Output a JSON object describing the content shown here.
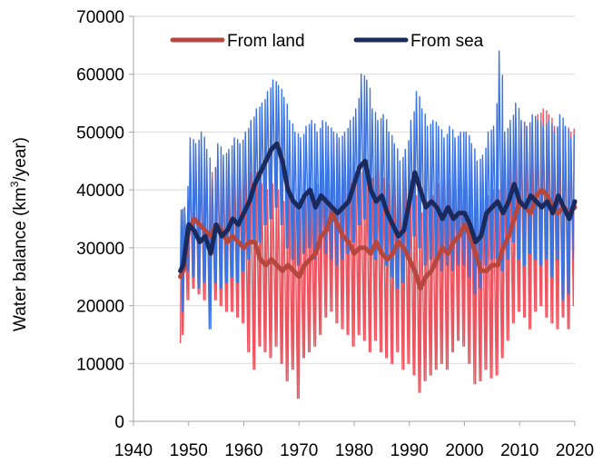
{
  "chart_data": {
    "type": "line",
    "title": "",
    "xlabel": "",
    "ylabel": "Water balance (km³/year)",
    "ylabel_parts": {
      "before": "Water balance (km",
      "sup": "3",
      "after": "/year)"
    },
    "xlim": [
      1940,
      2020
    ],
    "ylim": [
      0,
      70000
    ],
    "xticks": [
      "1940",
      "1950",
      "1960",
      "1970",
      "1980",
      "1990",
      "2000",
      "2010",
      "2020"
    ],
    "xtick_values": [
      1940,
      1950,
      1960,
      1970,
      1980,
      1990,
      2000,
      2010,
      2020
    ],
    "yticks": [
      "0",
      "10000",
      "20000",
      "30000",
      "40000",
      "50000",
      "60000",
      "70000"
    ],
    "ytick_values": [
      0,
      10000,
      20000,
      30000,
      40000,
      50000,
      60000,
      70000
    ],
    "grid": {
      "horizontal": true,
      "vertical": false
    },
    "legend": {
      "position": "top",
      "entries": [
        "From land",
        "From sea"
      ]
    },
    "series": [
      {
        "name": "From land",
        "role": "smoothed",
        "color": "#b5473f",
        "x": [
          1948.5,
          1949,
          1950,
          1951,
          1952,
          1953,
          1954,
          1955,
          1956,
          1957,
          1958,
          1959,
          1960,
          1961,
          1962,
          1963,
          1964,
          1965,
          1966,
          1967,
          1968,
          1969,
          1970,
          1971,
          1972,
          1973,
          1974,
          1975,
          1976,
          1977,
          1978,
          1979,
          1980,
          1981,
          1982,
          1983,
          1984,
          1985,
          1986,
          1987,
          1988,
          1989,
          1990,
          1991,
          1992,
          1993,
          1994,
          1995,
          1996,
          1997,
          1998,
          1999,
          2000,
          2001,
          2002,
          2003,
          2004,
          2005,
          2006,
          2007,
          2008,
          2009,
          2010,
          2011,
          2012,
          2013,
          2014,
          2015,
          2016,
          2017,
          2018,
          2019,
          2020
        ],
        "values": [
          25000,
          26000,
          33000,
          35000,
          34000,
          33000,
          32000,
          34000,
          33000,
          31000,
          32000,
          31000,
          30000,
          31000,
          31000,
          28000,
          27000,
          28000,
          27000,
          26000,
          27000,
          26000,
          25000,
          27000,
          28000,
          29000,
          32000,
          33000,
          36000,
          34000,
          32000,
          31000,
          29000,
          30000,
          30000,
          29000,
          31000,
          29000,
          28000,
          29000,
          31000,
          30000,
          28000,
          26000,
          23000,
          25000,
          26000,
          28000,
          30000,
          29000,
          31000,
          32000,
          34000,
          32000,
          29000,
          26000,
          26000,
          27000,
          27000,
          30000,
          32000,
          35000,
          38000,
          37000,
          36000,
          39000,
          40000,
          39000,
          37000,
          36000,
          37000,
          36000,
          37000
        ]
      },
      {
        "name": "From sea",
        "role": "smoothed",
        "color": "#1b2a5c",
        "x": [
          1948.5,
          1949,
          1950,
          1951,
          1952,
          1953,
          1954,
          1955,
          1956,
          1957,
          1958,
          1959,
          1960,
          1961,
          1962,
          1963,
          1964,
          1965,
          1966,
          1967,
          1968,
          1969,
          1970,
          1971,
          1972,
          1973,
          1974,
          1975,
          1976,
          1977,
          1978,
          1979,
          1980,
          1981,
          1982,
          1983,
          1984,
          1985,
          1986,
          1987,
          1988,
          1989,
          1990,
          1991,
          1992,
          1993,
          1994,
          1995,
          1996,
          1997,
          1998,
          1999,
          2000,
          2001,
          2002,
          2003,
          2004,
          2005,
          2006,
          2007,
          2008,
          2009,
          2010,
          2011,
          2012,
          2013,
          2014,
          2015,
          2016,
          2017,
          2018,
          2019,
          2020
        ],
        "values": [
          26000,
          27000,
          34000,
          33000,
          31000,
          32000,
          29000,
          34000,
          32000,
          33000,
          35000,
          34000,
          36000,
          38000,
          41000,
          43000,
          45000,
          47000,
          48000,
          45000,
          40000,
          38000,
          37000,
          39000,
          40000,
          37000,
          39000,
          38000,
          37000,
          36000,
          37000,
          38000,
          41000,
          44000,
          45000,
          40000,
          38000,
          39000,
          36000,
          34000,
          32000,
          33000,
          38000,
          43000,
          40000,
          37000,
          38000,
          37000,
          35000,
          37000,
          35000,
          36000,
          36000,
          34000,
          31000,
          32000,
          36000,
          37000,
          38000,
          36000,
          38000,
          41000,
          38000,
          37000,
          39000,
          38000,
          37000,
          38000,
          36000,
          39000,
          37000,
          35000,
          38000
        ]
      },
      {
        "name": "",
        "role": "raw-land",
        "color": "#ec5560",
        "x": [
          1948.5,
          1949,
          1950,
          1951,
          1952,
          1953,
          1954,
          1955,
          1956,
          1957,
          1958,
          1959,
          1960,
          1961,
          1962,
          1963,
          1964,
          1965,
          1966,
          1967,
          1968,
          1969,
          1970,
          1971,
          1972,
          1973,
          1974,
          1975,
          1976,
          1977,
          1978,
          1979,
          1980,
          1981,
          1982,
          1983,
          1984,
          1985,
          1986,
          1987,
          1988,
          1989,
          1990,
          1991,
          1992,
          1993,
          1994,
          1995,
          1996,
          1997,
          1998,
          1999,
          2000,
          2001,
          2002,
          2003,
          2004,
          2005,
          2006,
          2007,
          2008,
          2009,
          2010,
          2011,
          2012,
          2013,
          2014,
          2015,
          2016,
          2017,
          2018,
          2019,
          2020
        ],
        "peaks": [
          33000,
          36000,
          44000,
          46000,
          45000,
          44000,
          43000,
          46000,
          44000,
          42000,
          44000,
          43000,
          42000,
          43000,
          43000,
          41000,
          40000,
          41000,
          40000,
          38000,
          39000,
          38000,
          37000,
          39000,
          40000,
          41000,
          44000,
          45000,
          49000,
          47000,
          45000,
          44000,
          42000,
          43000,
          43000,
          42000,
          44000,
          42000,
          41000,
          42000,
          44000,
          43000,
          41000,
          39000,
          36000,
          38000,
          39000,
          41000,
          43000,
          42000,
          44000,
          45000,
          47000,
          45000,
          42000,
          39000,
          39000,
          40000,
          40000,
          43000,
          45000,
          48000,
          52000,
          51000,
          50000,
          53000,
          54000,
          53000,
          51000,
          50000,
          51000,
          50000,
          52000
        ],
        "troughs": [
          13500,
          15000,
          21000,
          23000,
          22000,
          21000,
          20000,
          21000,
          20000,
          19000,
          19000,
          18000,
          17000,
          12000,
          9000,
          13000,
          12000,
          11000,
          13000,
          10000,
          7000,
          9000,
          4000,
          11000,
          12000,
          13000,
          15000,
          18000,
          19000,
          17000,
          16000,
          15000,
          13000,
          15000,
          14000,
          12000,
          14000,
          12000,
          11000,
          10000,
          12000,
          9000,
          10000,
          8000,
          5000,
          7000,
          8000,
          9000,
          10000,
          9000,
          12000,
          14000,
          13000,
          10000,
          6500,
          7000,
          9000,
          7500,
          8000,
          11000,
          14000,
          17000,
          19000,
          18000,
          16000,
          19000,
          20000,
          18000,
          17000,
          16000,
          18000,
          16000,
          20000
        ]
      },
      {
        "name": "",
        "role": "raw-sea",
        "color": "#3b73e0",
        "x": [
          1948.5,
          1949,
          1950,
          1951,
          1952,
          1953,
          1954,
          1955,
          1956,
          1957,
          1958,
          1959,
          1960,
          1961,
          1962,
          1963,
          1964,
          1965,
          1966,
          1967,
          1968,
          1969,
          1970,
          1971,
          1972,
          1973,
          1974,
          1975,
          1976,
          1977,
          1978,
          1979,
          1980,
          1981,
          1982,
          1983,
          1984,
          1985,
          1986,
          1987,
          1988,
          1989,
          1990,
          1991,
          1992,
          1993,
          1994,
          1995,
          1996,
          1997,
          1998,
          1999,
          2000,
          2001,
          2002,
          2003,
          2004,
          2005,
          2006,
          2007,
          2008,
          2009,
          2010,
          2011,
          2012,
          2013,
          2014,
          2015,
          2016,
          2017,
          2018,
          2019,
          2020
        ],
        "peaks": [
          36500,
          37000,
          49000,
          48000,
          50000,
          47000,
          42000,
          48000,
          46000,
          47000,
          49000,
          48000,
          50000,
          52000,
          54000,
          55000,
          57000,
          59000,
          58000,
          56000,
          52000,
          50000,
          49000,
          51000,
          52000,
          50000,
          52000,
          51000,
          50000,
          49000,
          50000,
          52000,
          54000,
          60000,
          59000,
          54000,
          52000,
          53000,
          50000,
          48000,
          45000,
          47000,
          52000,
          57000,
          54000,
          51000,
          52000,
          51000,
          49000,
          51000,
          49000,
          50000,
          50000,
          48000,
          45000,
          46000,
          50000,
          51000,
          64000,
          50000,
          52000,
          55000,
          52000,
          51000,
          53000,
          52000,
          51000,
          52000,
          50000,
          53000,
          51000,
          49000,
          51000
        ],
        "troughs": [
          26000,
          19000,
          26000,
          25000,
          23000,
          24000,
          16000,
          24000,
          23000,
          24000,
          25000,
          24000,
          26000,
          28000,
          31000,
          31000,
          34000,
          35000,
          37000,
          34000,
          30000,
          28000,
          27000,
          29000,
          30000,
          28000,
          30000,
          29000,
          28000,
          27000,
          28000,
          29000,
          31000,
          34000,
          35000,
          30000,
          28000,
          29000,
          27000,
          25000,
          23000,
          24000,
          28000,
          32000,
          30000,
          27000,
          28000,
          27000,
          26000,
          27000,
          26000,
          27000,
          27000,
          25000,
          22000,
          23000,
          27000,
          28000,
          28000,
          26000,
          28000,
          31000,
          28000,
          27000,
          29000,
          28000,
          27000,
          28000,
          25000,
          28000,
          21000,
          22000,
          28000
        ]
      }
    ]
  }
}
